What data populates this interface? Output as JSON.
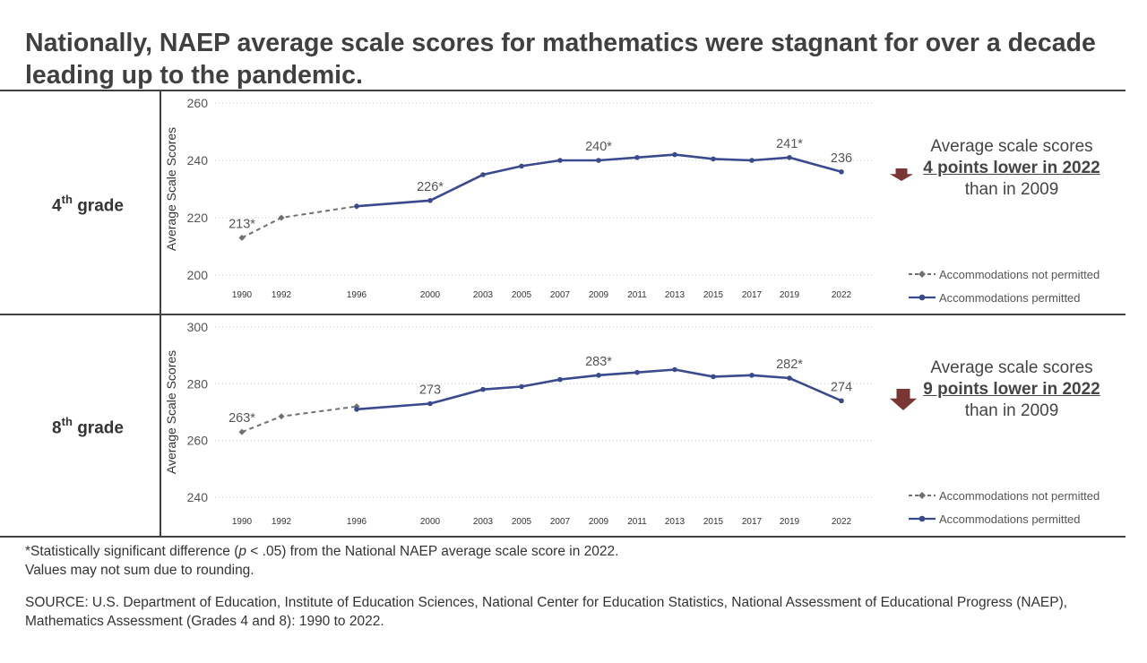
{
  "title": "Nationally, NAEP average scale scores for mathematics were stagnant for over a decade leading up to the pandemic.",
  "panels": [
    {
      "grade_label": "4",
      "grade_sup": "th",
      "grade_suffix": "grade",
      "callout": {
        "line1": "Average scale scores",
        "line2": "4 points lower in 2022",
        "line3": "than in 2009"
      }
    },
    {
      "grade_label": "8",
      "grade_sup": "th",
      "grade_suffix": "grade",
      "callout": {
        "line1": "Average scale scores",
        "line2": "9 points lower in 2022",
        "line3": "than in 2009"
      }
    }
  ],
  "footnote": {
    "line1_pre": "*Statistically significant difference (",
    "line1_p": "p",
    "line1_post": " < .05) from the National NAEP average scale score in 2022.",
    "line2": "Values may not sum due to rounding."
  },
  "source": "SOURCE: U.S. Department of Education, Institute of Education Sciences, National Center for Education Statistics, National Assessment of Educational Progress (NAEP), Mathematics Assessment (Grades 4 and 8): 1990 to 2022.",
  "colors": {
    "permitted": "#3a4a8c",
    "not_permitted": "#707070",
    "arrow": "#7a3535",
    "grid": "#cccccc",
    "text": "#444444"
  },
  "chart_data": [
    {
      "type": "line",
      "ylabel": "Average Scale Scores",
      "ylim": [
        200,
        260
      ],
      "yticks": [
        200,
        220,
        240,
        260
      ],
      "x": [
        1990,
        1992,
        1996,
        2000,
        2003,
        2005,
        2007,
        2009,
        2011,
        2013,
        2015,
        2017,
        2019,
        2022
      ],
      "legend_position": "bottom-right",
      "grid": true,
      "series": [
        {
          "name": "Accommodations not permitted",
          "style": "dashed",
          "marker": "diamond",
          "points": [
            {
              "x": 1990,
              "y": 213,
              "label": "213*"
            },
            {
              "x": 1992,
              "y": 220
            },
            {
              "x": 1996,
              "y": 224
            }
          ]
        },
        {
          "name": "Accommodations permitted",
          "style": "solid",
          "marker": "circle",
          "points": [
            {
              "x": 1996,
              "y": 224
            },
            {
              "x": 2000,
              "y": 226,
              "label": "226*"
            },
            {
              "x": 2003,
              "y": 235
            },
            {
              "x": 2005,
              "y": 238
            },
            {
              "x": 2007,
              "y": 240
            },
            {
              "x": 2009,
              "y": 240,
              "label": "240*"
            },
            {
              "x": 2011,
              "y": 241
            },
            {
              "x": 2013,
              "y": 242
            },
            {
              "x": 2015,
              "y": 240.5
            },
            {
              "x": 2017,
              "y": 240
            },
            {
              "x": 2019,
              "y": 241,
              "label": "241*"
            },
            {
              "x": 2022,
              "y": 236,
              "label": "236"
            }
          ]
        }
      ]
    },
    {
      "type": "line",
      "ylabel": "Average Scale Scores",
      "ylim": [
        240,
        300
      ],
      "yticks": [
        240,
        260,
        280,
        300
      ],
      "x": [
        1990,
        1992,
        1996,
        2000,
        2003,
        2005,
        2007,
        2009,
        2011,
        2013,
        2015,
        2017,
        2019,
        2022
      ],
      "legend_position": "bottom-right",
      "grid": true,
      "series": [
        {
          "name": "Accommodations not permitted",
          "style": "dashed",
          "marker": "diamond",
          "points": [
            {
              "x": 1990,
              "y": 263,
              "label": "263*"
            },
            {
              "x": 1992,
              "y": 268.5
            },
            {
              "x": 1996,
              "y": 272
            }
          ]
        },
        {
          "name": "Accommodations permitted",
          "style": "solid",
          "marker": "circle",
          "points": [
            {
              "x": 1996,
              "y": 271
            },
            {
              "x": 2000,
              "y": 273,
              "label": "273"
            },
            {
              "x": 2003,
              "y": 278
            },
            {
              "x": 2005,
              "y": 279
            },
            {
              "x": 2007,
              "y": 281.5
            },
            {
              "x": 2009,
              "y": 283,
              "label": "283*"
            },
            {
              "x": 2011,
              "y": 284
            },
            {
              "x": 2013,
              "y": 285
            },
            {
              "x": 2015,
              "y": 282.5
            },
            {
              "x": 2017,
              "y": 283
            },
            {
              "x": 2019,
              "y": 282,
              "label": "282*"
            },
            {
              "x": 2022,
              "y": 274,
              "label": "274"
            }
          ]
        }
      ]
    }
  ]
}
